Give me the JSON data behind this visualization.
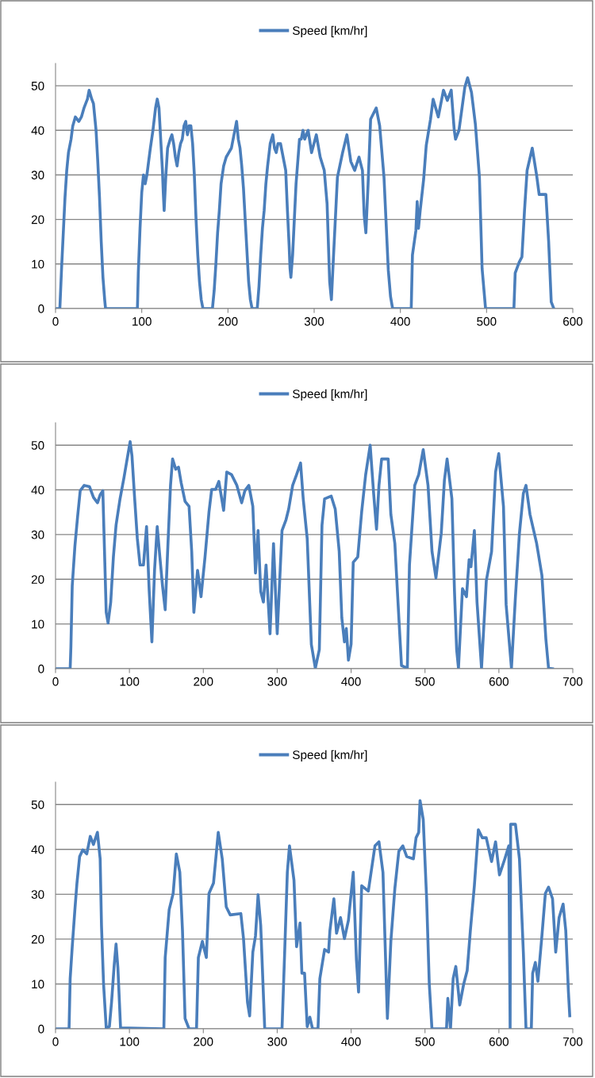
{
  "chart_data": [
    {
      "type": "line",
      "xlim": [
        0,
        600
      ],
      "xticks": [
        0,
        100,
        200,
        300,
        400,
        500,
        600
      ],
      "ylim": [
        0,
        55
      ],
      "yticks": [
        0,
        10,
        20,
        30,
        40,
        50
      ],
      "grid": "y",
      "legend": "top",
      "line_style": "solid",
      "marker": "none",
      "series": [
        {
          "name": "Speed [km/hr]",
          "color": "#4a7ebb",
          "x": [
            0,
            5,
            7,
            9,
            11,
            13,
            15,
            18,
            20,
            23,
            27,
            30,
            33,
            37,
            39,
            42,
            44,
            47,
            49,
            51,
            53,
            55,
            57,
            58,
            95,
            96,
            98,
            100,
            102,
            104,
            106,
            108,
            110,
            113,
            116,
            118,
            120,
            122,
            124,
            125,
            126,
            127,
            128,
            130,
            133,
            135,
            137,
            139,
            141,
            143,
            145,
            147,
            149,
            151,
            153,
            155,
            157,
            159,
            161,
            163,
            165,
            167,
            169,
            171,
            182,
            184,
            186,
            188,
            190,
            192,
            195,
            198,
            201,
            204,
            206,
            208,
            210,
            212,
            214,
            216,
            218,
            220,
            222,
            224,
            226,
            228,
            234,
            236,
            238,
            240,
            242,
            244,
            246,
            249,
            252,
            254,
            256,
            258,
            261,
            263,
            265,
            267,
            269,
            271,
            272,
            273,
            275,
            277,
            279,
            281,
            283,
            285,
            287,
            289,
            293,
            297,
            302.5,
            307,
            311.7,
            315,
            318,
            320,
            322.5,
            327,
            333,
            338,
            342.5,
            347,
            352,
            356,
            358,
            360,
            362.5,
            365.5,
            372,
            376,
            381,
            386,
            388.6,
            391,
            412.6,
            414,
            418,
            419.5,
            421,
            423,
            427,
            430,
            435,
            438,
            444,
            450,
            454.5,
            459,
            462.5,
            464,
            468,
            474.8,
            478,
            482.5,
            487,
            491.7,
            494.8,
            498.8,
            531.7,
            533.2,
            537.8,
            541,
            544,
            547,
            553,
            558,
            561,
            568.8,
            572,
            575,
            578
          ],
          "values": [
            0,
            0,
            9,
            17,
            25,
            31,
            35,
            38,
            41,
            43,
            42,
            43,
            45,
            47,
            49,
            47,
            46,
            40,
            33,
            25,
            15,
            7,
            2,
            0,
            0,
            8,
            18,
            26,
            30,
            28,
            30,
            33,
            36,
            40,
            45,
            47,
            45,
            38,
            31,
            26,
            22,
            26,
            30,
            36,
            38,
            39,
            37,
            34,
            32,
            35,
            37,
            38,
            41,
            42,
            39,
            41,
            41,
            37,
            30,
            20,
            12,
            6,
            2,
            0,
            0,
            4,
            10,
            17,
            22,
            28,
            32,
            34,
            35,
            36,
            38,
            40,
            42,
            38,
            36,
            32,
            27,
            20,
            13,
            6,
            2,
            0,
            0,
            5,
            12,
            18,
            22,
            28,
            32,
            37,
            39,
            36,
            35,
            37,
            37,
            35,
            33,
            31,
            22,
            14,
            9,
            7,
            12,
            20,
            28,
            33,
            38,
            38,
            40,
            38,
            40,
            35,
            39,
            34,
            31,
            23.5,
            6,
            2,
            12,
            29.5,
            35,
            39,
            33,
            31,
            34,
            31,
            21,
            17,
            27.7,
            42.5,
            45,
            41,
            29.5,
            8.6,
            2.7,
            0,
            0,
            12,
            17.5,
            24,
            18,
            22,
            29,
            36.6,
            42.5,
            47,
            43,
            49,
            46.7,
            49,
            40,
            38,
            40,
            49.7,
            51.8,
            48.5,
            41.4,
            29.5,
            9,
            0,
            0,
            8,
            10.4,
            11.6,
            22,
            31,
            36,
            30,
            25.6,
            25.6,
            15,
            1.5,
            0
          ]
        }
      ]
    },
    {
      "type": "line",
      "xlim": [
        0,
        700
      ],
      "xticks": [
        0,
        100,
        200,
        300,
        400,
        500,
        600,
        700
      ],
      "ylim": [
        0,
        55
      ],
      "yticks": [
        0,
        10,
        20,
        30,
        40,
        50
      ],
      "grid": "y",
      "legend": "top",
      "line_style": "solid",
      "marker": "none",
      "series": [
        {
          "name": "Speed [km/hr]",
          "color": "#4a7ebb",
          "x": [
            0,
            19.8,
            20.8,
            22.6,
            26.2,
            29.8,
            33.4,
            38.8,
            46,
            51.4,
            56.8,
            60.4,
            64,
            65.8,
            68.6,
            71.1,
            74.7,
            78.3,
            81.9,
            87.3,
            92.7,
            96.3,
            101,
            103.5,
            107.1,
            110.7,
            114.3,
            119,
            123.2,
            126.8,
            130.4,
            134,
            137.6,
            141.2,
            144.8,
            148.4,
            152,
            155.6,
            158.4,
            162.7,
            166.4,
            170,
            175.3,
            180.7,
            184.3,
            187.2,
            189.7,
            192.2,
            196.9,
            202.3,
            207.7,
            211.3,
            216.7,
            221,
            227.5,
            231.7,
            238.2,
            245.4,
            251.9,
            256.2,
            261.6,
            267,
            270.6,
            274.1,
            277.7,
            281.3,
            284.9,
            290.3,
            295,
            300,
            306.5,
            311.9,
            315.5,
            320.9,
            326.2,
            331.6,
            335.2,
            340.6,
            346.2,
            351.6,
            357,
            360.6,
            364.1,
            373.1,
            378.5,
            383.9,
            387.4,
            391,
            393.5,
            396.4,
            400,
            402.9,
            409,
            414.3,
            419.7,
            425.8,
            430.5,
            434.4,
            437.7,
            441.3,
            450.2,
            453.8,
            459.2,
            464.6,
            468.2,
            476.1,
            479,
            486.1,
            491.5,
            497.6,
            504.1,
            509.5,
            514.8,
            522,
            526.3,
            529.9,
            536.4,
            539.9,
            542.8,
            545.3,
            550.7,
            556.1,
            559.7,
            562.2,
            566.8,
            570.4,
            576.5,
            583,
            590.1,
            595.5,
            599.8,
            606.2,
            609.8,
            617,
            622.4,
            627.8,
            633.1,
            636.7,
            642.1,
            651.1,
            658.2,
            663.6,
            667.2,
            672.6
          ],
          "values": [
            0,
            0,
            4.9,
            18.5,
            27.4,
            33.9,
            39.8,
            41,
            40.7,
            38.3,
            37.1,
            38.9,
            39.8,
            29.1,
            12.6,
            10.2,
            14.9,
            25,
            32.1,
            38,
            42.8,
            46.3,
            50.8,
            47.5,
            38,
            29.1,
            23.2,
            23.2,
            31.8,
            17.3,
            6,
            22,
            31.8,
            25,
            18.5,
            13.2,
            27.4,
            41,
            46.9,
            44.6,
            45.1,
            41.6,
            37.4,
            36.3,
            26.2,
            12.6,
            17.3,
            22,
            16.1,
            25,
            35.1,
            40.1,
            40.1,
            41.9,
            35.4,
            44,
            43.4,
            41,
            37.1,
            39.8,
            41,
            36.3,
            21.4,
            30.9,
            17.3,
            14.9,
            23.2,
            7.8,
            28,
            7.8,
            30.9,
            33.3,
            35.7,
            41,
            43.4,
            46,
            38,
            29.1,
            5.4,
            0.1,
            4.3,
            32.1,
            38,
            38.6,
            35.7,
            26.2,
            11.4,
            6,
            9,
            1.9,
            5.5,
            23.8,
            25,
            35.1,
            43.4,
            50,
            39.2,
            31.2,
            41,
            46.9,
            46.9,
            34.5,
            28,
            11.4,
            0.7,
            0.1,
            23.2,
            41,
            43.4,
            49,
            41,
            26.2,
            20.3,
            30.3,
            42.2,
            46.9,
            38,
            17.3,
            4.3,
            0.1,
            17.9,
            16.1,
            24.4,
            22.8,
            30.9,
            14.9,
            0.1,
            19.7,
            26.2,
            44,
            48.1,
            36.3,
            14.3,
            0.1,
            16.1,
            30.3,
            39.2,
            41,
            34.5,
            28,
            20.9,
            6.6,
            0.1,
            0
          ]
        }
      ]
    },
    {
      "type": "line",
      "xlim": [
        0,
        700
      ],
      "xticks": [
        0,
        100,
        200,
        300,
        400,
        500,
        600,
        700
      ],
      "ylim": [
        0,
        55
      ],
      "yticks": [
        0,
        10,
        20,
        30,
        40,
        50
      ],
      "grid": "y",
      "legend": "top",
      "line_style": "solid",
      "marker": "none",
      "series": [
        {
          "name": "Speed [km/hr]",
          "color": "#4a7ebb",
          "x": [
            0,
            18.3,
            19.8,
            22.6,
            26.2,
            29,
            32.6,
            36.9,
            42.3,
            47,
            51.3,
            56.7,
            60.4,
            62.2,
            65,
            68.6,
            72.9,
            75.8,
            79.4,
            81.9,
            84.4,
            88,
            146.6,
            148.4,
            153.8,
            159.2,
            163.5,
            168.2,
            171.8,
            175.3,
            180.7,
            190.8,
            193.3,
            198.7,
            204.1,
            207.7,
            213.8,
            220.2,
            225.6,
            231,
            236.4,
            250.8,
            254.4,
            259.8,
            262.7,
            267,
            270.6,
            274.1,
            277.7,
            283.1,
            306.5,
            310.1,
            313.7,
            316.6,
            322.7,
            326.2,
            330.9,
            333.4,
            337,
            340.6,
            344.2,
            347.8,
            355.2,
            357.7,
            364.1,
            369.5,
            371.3,
            376.7,
            380.3,
            385.7,
            391,
            396.4,
            402.9,
            407.2,
            410.1,
            414.3,
            423.3,
            432.3,
            437.7,
            443.1,
            446.6,
            449.1,
            453.8,
            459.2,
            464.6,
            470,
            475.3,
            484.3,
            487.9,
            491.5,
            493.3,
            497.6,
            502.2,
            505.8,
            509.4,
            529.1,
            530.9,
            534.5,
            538.1,
            541.7,
            547,
            552.4,
            557.1,
            561.4,
            566.8,
            572.2,
            577.5,
            582.9,
            590.1,
            595.5,
            600.8,
            608,
            613.4,
            615.2,
            615.9,
            622.4,
            627.8,
            633.1,
            636.7,
            643.9,
            645.7,
            649.3,
            652.8,
            658.2,
            662.9,
            667.2,
            672.6,
            676.9,
            681.5,
            686.9,
            690.5,
            694.1,
            695.9
          ],
          "values": [
            0,
            0,
            11.2,
            18.3,
            26.6,
            32.5,
            38.4,
            39.9,
            39,
            42.9,
            41.1,
            43.8,
            37.9,
            23,
            10,
            0.2,
            0.5,
            5.9,
            14.2,
            18.9,
            13.6,
            0.2,
            0,
            15.9,
            26.6,
            30.2,
            39,
            34.9,
            21.9,
            2.3,
            0,
            0,
            15.9,
            19.5,
            15.9,
            30.2,
            32.5,
            43.8,
            37.9,
            27.2,
            25.4,
            25.7,
            20.1,
            5.9,
            2.9,
            17.1,
            20.7,
            29.9,
            23,
            0,
            0,
            17.1,
            34.9,
            40.8,
            33.1,
            18.3,
            23.6,
            12.4,
            12.4,
            0.5,
            2.6,
            0,
            0,
            11.2,
            17.7,
            17.1,
            21.9,
            29,
            21.3,
            24.8,
            20.1,
            24.2,
            34.9,
            15.3,
            8.2,
            31.9,
            30.7,
            40.8,
            41.7,
            34.9,
            15.9,
            2.3,
            19.5,
            31.3,
            39.6,
            40.8,
            38.4,
            37.9,
            42.6,
            43.8,
            50.9,
            46.7,
            29,
            10,
            0,
            0,
            6.8,
            0,
            11.2,
            13.9,
            5.3,
            10,
            13,
            21.9,
            31.9,
            44.4,
            42.6,
            42.6,
            37.3,
            41.7,
            34.3,
            37.9,
            40.8,
            0,
            45.6,
            45.6,
            37.9,
            17.1,
            0,
            0,
            12.4,
            14.8,
            10.6,
            20.7,
            30.2,
            31.6,
            29,
            17.1,
            24.8,
            27.8,
            21.9,
            8.2,
            2.9
          ]
        }
      ]
    }
  ]
}
